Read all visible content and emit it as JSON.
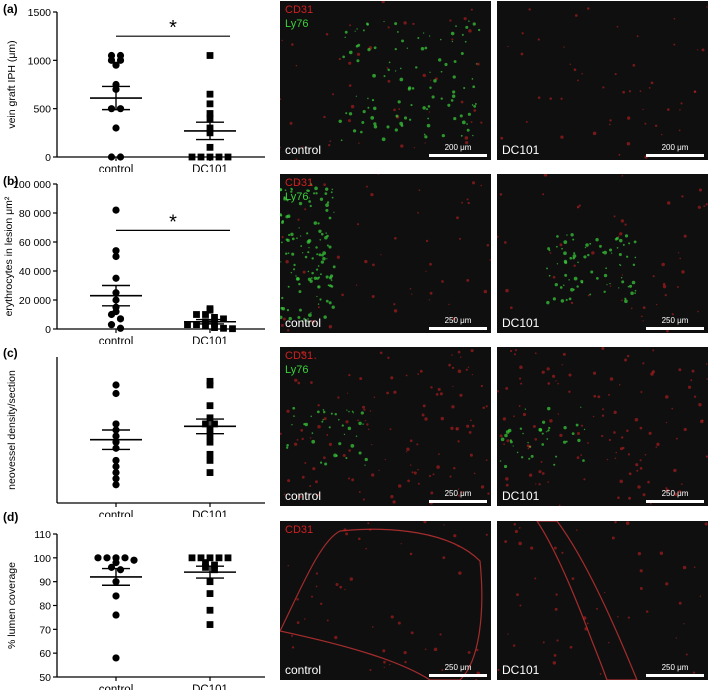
{
  "chart_data": [
    {
      "type": "scatter",
      "panel": "(a)",
      "ylabel": "vein graft IPH (μm)",
      "ylim": [
        0,
        1500
      ],
      "yticks": [
        0,
        500,
        1000,
        1500
      ],
      "categories": [
        "control",
        "DC101"
      ],
      "series": [
        {
          "values": [
            1050,
            1050,
            1000,
            1000,
            950,
            750,
            700,
            500,
            500,
            300,
            0,
            0
          ]
        },
        {
          "values": [
            1050,
            650,
            550,
            450,
            400,
            300,
            250,
            100,
            0,
            0,
            0,
            0,
            0
          ]
        }
      ],
      "mean": [
        610,
        270
      ],
      "sem": [
        120,
        90
      ],
      "significance": {
        "symbol": "*",
        "between": [
          0,
          1
        ],
        "y": 1250
      }
    },
    {
      "type": "scatter",
      "panel": "(b)",
      "ylabel": "erythrocytes in lesion μm²",
      "ylim": [
        0,
        100000
      ],
      "yticks": [
        0,
        20000,
        40000,
        60000,
        80000,
        100000
      ],
      "yticklabels": [
        "0",
        "20 000",
        "40 000",
        "60 000",
        "80 000",
        "100 000"
      ],
      "categories": [
        "control",
        "DC101"
      ],
      "series": [
        {
          "values": [
            82000,
            54000,
            50000,
            35000,
            25000,
            20000,
            15000,
            12000,
            10000,
            7000,
            3000,
            500
          ]
        },
        {
          "values": [
            14000,
            13000,
            10000,
            10000,
            8000,
            7000,
            5000,
            4000,
            3000,
            3000,
            2000,
            1000,
            500,
            200
          ]
        }
      ],
      "mean": [
        23000,
        5000
      ],
      "sem": [
        7000,
        1500
      ],
      "significance": {
        "symbol": "*",
        "between": [
          0,
          1
        ],
        "y": 68000
      }
    },
    {
      "type": "scatter",
      "panel": "(c)",
      "ylabel": "neovessel density/section",
      "ylim": [
        0,
        120
      ],
      "yticks": [],
      "categories": [
        "control",
        "DC101"
      ],
      "series": [
        {
          "values": [
            97,
            90,
            65,
            60,
            55,
            50,
            45,
            35,
            30,
            25,
            20,
            15
          ]
        },
        {
          "values": [
            100,
            97,
            80,
            70,
            65,
            65,
            60,
            55,
            50,
            40,
            35,
            25
          ]
        }
      ],
      "mean": [
        52,
        63
      ],
      "sem": [
        8,
        6
      ]
    },
    {
      "type": "scatter",
      "panel": "(d)",
      "ylabel": "% lumen coverage",
      "ylim": [
        50,
        110
      ],
      "yticks": [
        50,
        60,
        70,
        80,
        90,
        100,
        110
      ],
      "categories": [
        "control",
        "DC101"
      ],
      "series": [
        {
          "values": [
            100,
            100,
            100,
            100,
            99,
            98,
            96,
            95,
            90,
            84,
            76,
            58
          ]
        },
        {
          "values": [
            100,
            100,
            100,
            100,
            100,
            98,
            97,
            96,
            95,
            90,
            85,
            78,
            72
          ]
        }
      ],
      "mean": [
        92,
        94
      ],
      "sem": [
        3.5,
        2.5
      ]
    }
  ],
  "micrographs": [
    {
      "row": 0,
      "label": "control",
      "stains": [
        "CD31",
        "Ly76"
      ],
      "scalebar": "200 μm"
    },
    {
      "row": 0,
      "label": "DC101",
      "stains": [],
      "scalebar": "200 μm"
    },
    {
      "row": 1,
      "label": "control",
      "stains": [
        "CD31",
        "Ly76"
      ],
      "scalebar": "250 μm"
    },
    {
      "row": 1,
      "label": "DC101",
      "stains": [],
      "scalebar": "250 μm"
    },
    {
      "row": 2,
      "label": "control",
      "stains": [
        "CD31",
        "Ly76"
      ],
      "scalebar": "250 μm"
    },
    {
      "row": 2,
      "label": "DC101",
      "stains": [],
      "scalebar": "250 μm"
    },
    {
      "row": 3,
      "label": "control",
      "stains": [
        "CD31"
      ],
      "scalebar": "250 μm"
    },
    {
      "row": 3,
      "label": "DC101",
      "stains": [],
      "scalebar": "250 μm"
    }
  ],
  "colors": {
    "cd31": "#d02020",
    "ly76": "#3ad13a",
    "background": "#0f0f10"
  }
}
